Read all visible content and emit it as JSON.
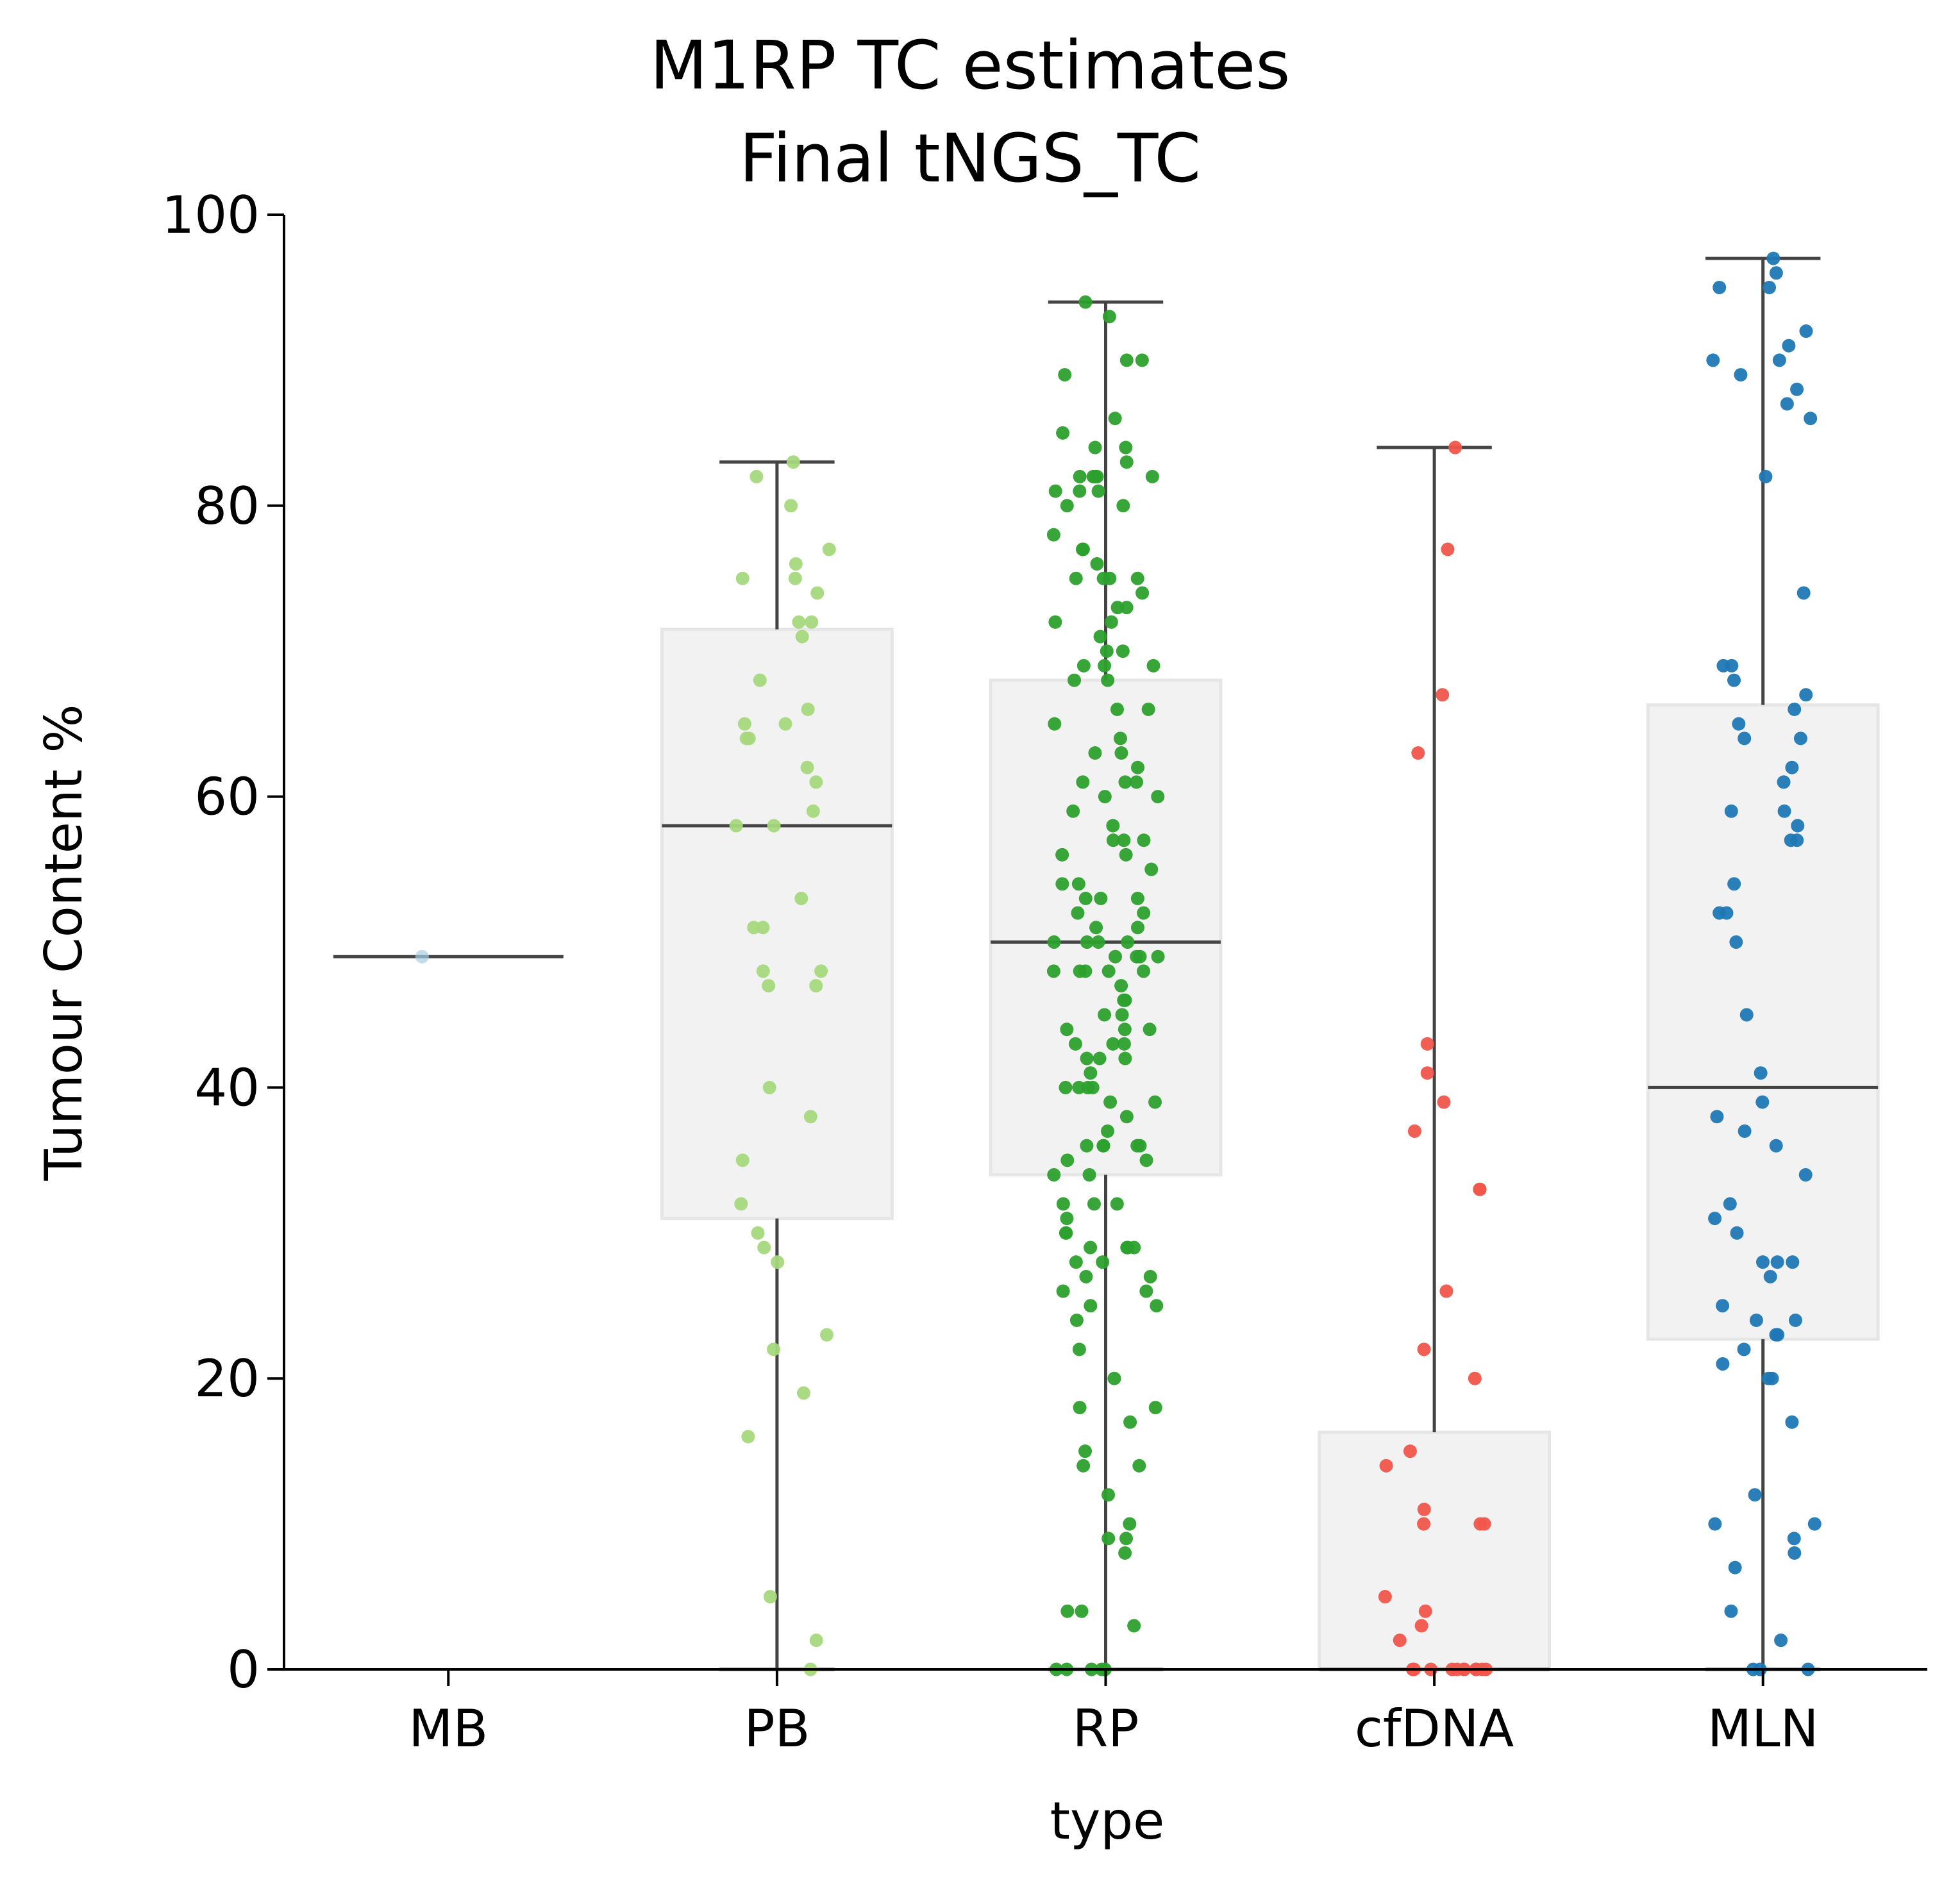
{
  "chart_data": {
    "type": "box",
    "title": "M1RP TC estimates",
    "subtitle": "Final tNGS_TC",
    "xlabel": "type",
    "ylabel": "Tumour Content %",
    "ylim": [
      0,
      100
    ],
    "yticks": [
      "0",
      "20",
      "40",
      "60",
      "80",
      "100"
    ],
    "categories": [
      "MB",
      "PB",
      "RP",
      "cfDNA",
      "MLN"
    ],
    "colors": {
      "MB": "#a6cee3",
      "PB": "#a6d87d",
      "RP": "#2ca02c",
      "cfDNA": "#f0564b",
      "MLN": "#1f78b4",
      "box_fill": "#f2f2f2",
      "box_edge": "#e6e6e6",
      "line": "#444444"
    },
    "boxes": [
      {
        "category": "MB",
        "min": 49,
        "q1": 49,
        "median": 49,
        "q3": 49,
        "max": 49
      },
      {
        "category": "PB",
        "min": 0,
        "q1": 31,
        "median": 58,
        "q3": 71.5,
        "max": 83
      },
      {
        "category": "RP",
        "min": 0,
        "q1": 34,
        "median": 50,
        "q3": 68,
        "max": 94
      },
      {
        "category": "cfDNA",
        "min": 0,
        "q1": 0,
        "median": 0,
        "q3": 16.3,
        "max": 84
      },
      {
        "category": "MLN",
        "min": 0,
        "q1": 22.7,
        "median": 40,
        "q3": 66.3,
        "max": 97
      }
    ],
    "points": {
      "MB": [
        49
      ],
      "PB": [
        83,
        82,
        80,
        77,
        76,
        75,
        75,
        74,
        72,
        72,
        71,
        68,
        66,
        65,
        65,
        64,
        64,
        62,
        61,
        59,
        58,
        58,
        53,
        51,
        51,
        48,
        48,
        47,
        47,
        40,
        38,
        35,
        32,
        30,
        29,
        28,
        23,
        22,
        19,
        16,
        5,
        2,
        0
      ],
      "RP": [
        94,
        93,
        90,
        90,
        89,
        86,
        85,
        84,
        84,
        83,
        82,
        82,
        82,
        82,
        82,
        81,
        81,
        81,
        80,
        80,
        78,
        77,
        77,
        76,
        75,
        75,
        75,
        75,
        74,
        73,
        73,
        72,
        72,
        71,
        70,
        70,
        69,
        69,
        69,
        68,
        68,
        66,
        66,
        65,
        64,
        63,
        63,
        62,
        61,
        61,
        61,
        60,
        60,
        59,
        58,
        57,
        57,
        57,
        56,
        56,
        55,
        54,
        54,
        53,
        53,
        53,
        52,
        52,
        51,
        51,
        50,
        50,
        50,
        50,
        49,
        49,
        49,
        49,
        48,
        48,
        48,
        48,
        48,
        47,
        46,
        46,
        45,
        45,
        44,
        44,
        44,
        43,
        43,
        43,
        42,
        42,
        42,
        41,
        40,
        40,
        40,
        40,
        39,
        39,
        38,
        37,
        36,
        36,
        36,
        36,
        36,
        35,
        35,
        34,
        34,
        32,
        32,
        32,
        31,
        30,
        30,
        29,
        29,
        29,
        29,
        28,
        28,
        27,
        27,
        26,
        26,
        25,
        25,
        24,
        22,
        20,
        18,
        18,
        17,
        15,
        14,
        14,
        12,
        10,
        9,
        9,
        8,
        4,
        4,
        3,
        0,
        0,
        0,
        0,
        0
      ],
      "cfDNA": [
        84,
        77,
        67,
        63,
        43,
        41,
        39,
        37,
        33,
        33,
        26,
        22,
        20,
        15,
        14,
        11,
        10,
        10,
        10,
        5,
        4,
        3,
        2,
        0,
        0,
        0,
        0,
        0,
        0,
        0,
        0,
        0,
        0,
        0
      ],
      "MLN": [
        97,
        96,
        95,
        95,
        92,
        91,
        90,
        90,
        89,
        88,
        87,
        86,
        82,
        74,
        69,
        69,
        68,
        67,
        66,
        65,
        64,
        64,
        62,
        61,
        59,
        59,
        58,
        57,
        57,
        54,
        52,
        52,
        50,
        45,
        41,
        39,
        38,
        37,
        36,
        34,
        32,
        31,
        30,
        28,
        28,
        28,
        27,
        25,
        24,
        24,
        23,
        23,
        22,
        21,
        20,
        20,
        17,
        12,
        10,
        10,
        9,
        8,
        7,
        4,
        2,
        0,
        0,
        0
      ]
    }
  }
}
